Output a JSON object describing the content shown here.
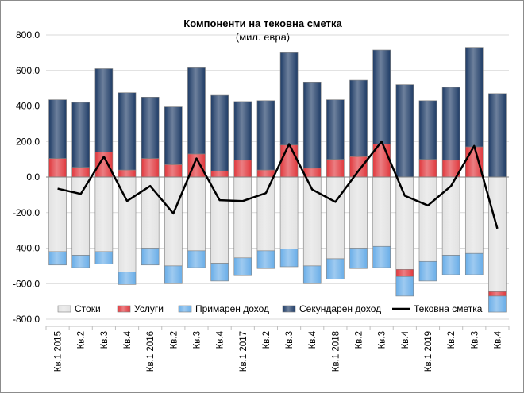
{
  "chart_data": {
    "type": "bar",
    "title": "Компоненти  на текoвна сметка",
    "subtitle": "(мил. евра)",
    "ylim": [
      -800,
      800
    ],
    "yticks": [
      "800.0",
      "600.0",
      "400.0",
      "200.0",
      "0.0",
      "-200.0",
      "-400.0",
      "-600.0",
      "-800.0"
    ],
    "categories": [
      "Кв.1 2015",
      "Кв.2",
      "Кв.3",
      "Кв.4",
      "Кв.1 2016",
      "Кв.2",
      "Кв.3",
      "Кв.4",
      "Кв.1 2017",
      "Кв.2",
      "Кв.3",
      "Кв.4",
      "Кв.1 2018",
      "Кв.2",
      "Кв.3",
      "Кв.4",
      "Кв.1 2019",
      "Кв.2",
      "Кв.3",
      "Кв.4"
    ],
    "series": [
      {
        "name": "Стоки",
        "color": "#e2e2e2",
        "values": [
          -420,
          -440,
          -420,
          -535,
          -400,
          -500,
          -415,
          -485,
          -455,
          -415,
          -405,
          -500,
          -460,
          -400,
          -390,
          -520,
          -475,
          -440,
          -430,
          -645
        ]
      },
      {
        "name": "Услуги",
        "color": "#e0393e",
        "values": [
          105,
          55,
          140,
          40,
          105,
          70,
          130,
          35,
          95,
          40,
          180,
          50,
          100,
          115,
          185,
          -40,
          100,
          95,
          170,
          -25
        ]
      },
      {
        "name": "Примарен доход",
        "color": "#6aaee8",
        "values": [
          -75,
          -70,
          -70,
          -70,
          -95,
          -100,
          -95,
          -100,
          -100,
          -100,
          -100,
          -100,
          -115,
          -115,
          -120,
          -110,
          -110,
          -110,
          -120,
          -90
        ]
      },
      {
        "name": "Секундарен доход",
        "color": "#1f3c66",
        "values": [
          330,
          365,
          470,
          435,
          345,
          325,
          485,
          425,
          330,
          390,
          520,
          485,
          335,
          430,
          530,
          520,
          330,
          410,
          560,
          470
        ]
      }
    ],
    "line": {
      "name": "Текoвна сметка",
      "color": "#000000",
      "values": [
        -65,
        -95,
        115,
        -135,
        -50,
        -205,
        105,
        -130,
        -135,
        -90,
        185,
        -70,
        -140,
        35,
        200,
        -105,
        -160,
        -50,
        175,
        -290
      ]
    }
  }
}
